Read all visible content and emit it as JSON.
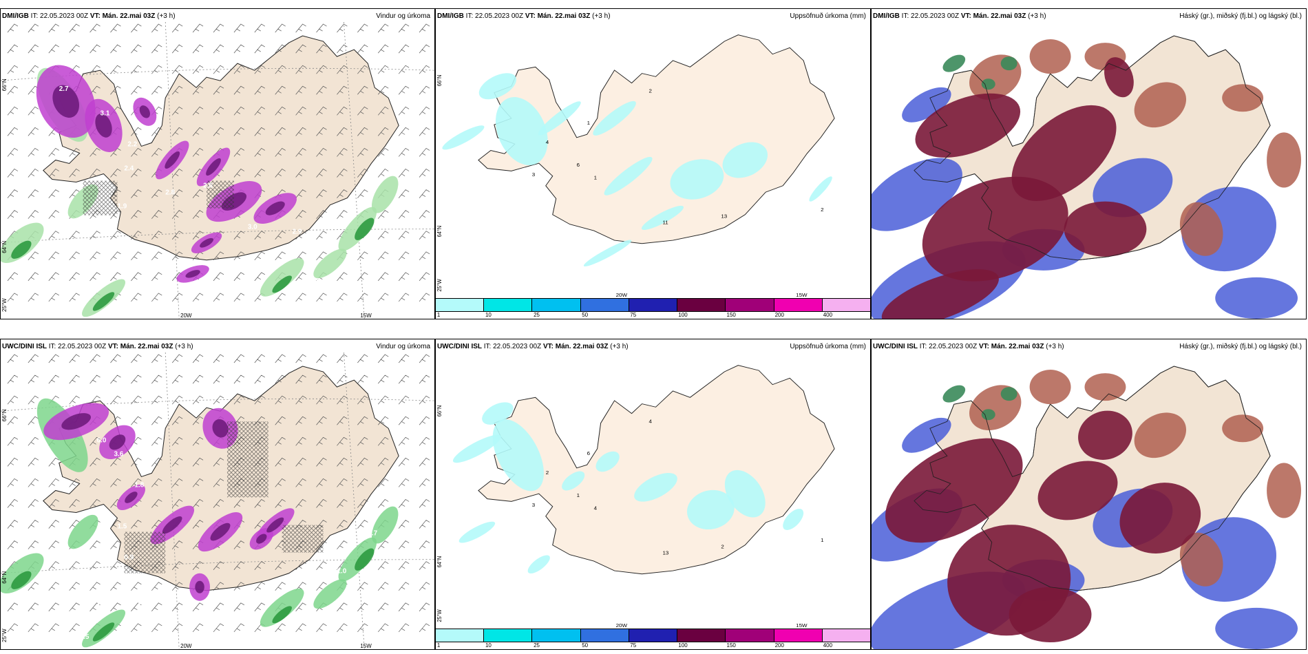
{
  "panels": [
    {
      "model": "DMI/IGB",
      "it": "IT: 22.05.2023 00Z",
      "vt": "VT: Mán. 22.mai 03Z",
      "lead": "(+3 h)",
      "title": "Vindur og úrkoma"
    },
    {
      "model": "DMI/IGB",
      "it": "IT: 22.05.2023 00Z",
      "vt": "VT: Mán. 22.mai 03Z",
      "lead": "(+3 h)",
      "title": "Uppsöfnuð úrkoma (mm)"
    },
    {
      "model": "DMI/IGB",
      "it": "IT: 22.05.2023 00Z",
      "vt": "VT: Mán. 22.mai 03Z",
      "lead": "(+3 h)",
      "title": "Háský (gr.), miðský (fj.bl.) og lágský (bl.)"
    },
    {
      "model": "UWC/DINI ISL",
      "it": "IT: 22.05.2023 00Z",
      "vt": "VT: Mán. 22.mai 03Z",
      "lead": "(+3 h)",
      "title": "Vindur og úrkoma"
    },
    {
      "model": "UWC/DINI ISL",
      "it": "IT: 22.05.2023 00Z",
      "vt": "VT: Mán. 22.mai 03Z",
      "lead": "(+3 h)",
      "title": "Uppsöfnuð úrkoma (mm)"
    },
    {
      "model": "UWC/DINI ISL",
      "it": "IT: 22.05.2023 00Z",
      "vt": "VT: Mán. 22.mai 03Z",
      "lead": "(+3 h)",
      "title": "Háský (gr.), miðský (fj.bl.) og lágský (bl.)"
    }
  ],
  "grid_labels": {
    "lat66": "66°N",
    "lat64": "64°N",
    "lon25": "25°W",
    "lon20": "20W",
    "lon15": "15W"
  },
  "colorbar": {
    "colors": [
      "#b4fafa",
      "#00e6e6",
      "#00c0f0",
      "#3070e0",
      "#2020b0",
      "#6a0040",
      "#a00078",
      "#f000b0",
      "#f5b0f0"
    ],
    "ticks": [
      "1",
      "10",
      "25",
      "50",
      "75",
      "100",
      "150",
      "200",
      "400"
    ]
  },
  "wind_labels_top": [
    "2.7",
    "3.1",
    "2.2",
    "2.4",
    "2.8",
    "2.6",
    "3.0",
    "2.9",
    "1.9",
    "0.9",
    "0.3",
    "0.6",
    "0.5"
  ],
  "wind_labels_bottom": [
    "6.0",
    "3.6",
    "1.8",
    "1.5",
    "0.9",
    "0.5",
    "1.0",
    "0.7",
    "1.1",
    "0.8",
    "0.6",
    "0.5"
  ],
  "accum_labels_top": [
    "2",
    "1",
    "4",
    "6",
    "3",
    "1",
    "11",
    "13",
    "2"
  ],
  "accum_labels_bottom": [
    "4",
    "6",
    "2",
    "1",
    "3",
    "4",
    "13",
    "2",
    "1"
  ],
  "colors": {
    "land": "#f2e4d4",
    "land_accum": "#fcefe2",
    "magenta": "#c040d0",
    "green": "#2e9a40",
    "cloud_high": "#7a1838",
    "cloud_mid": "#b06050",
    "cloud_low": "#4a5ed8"
  }
}
